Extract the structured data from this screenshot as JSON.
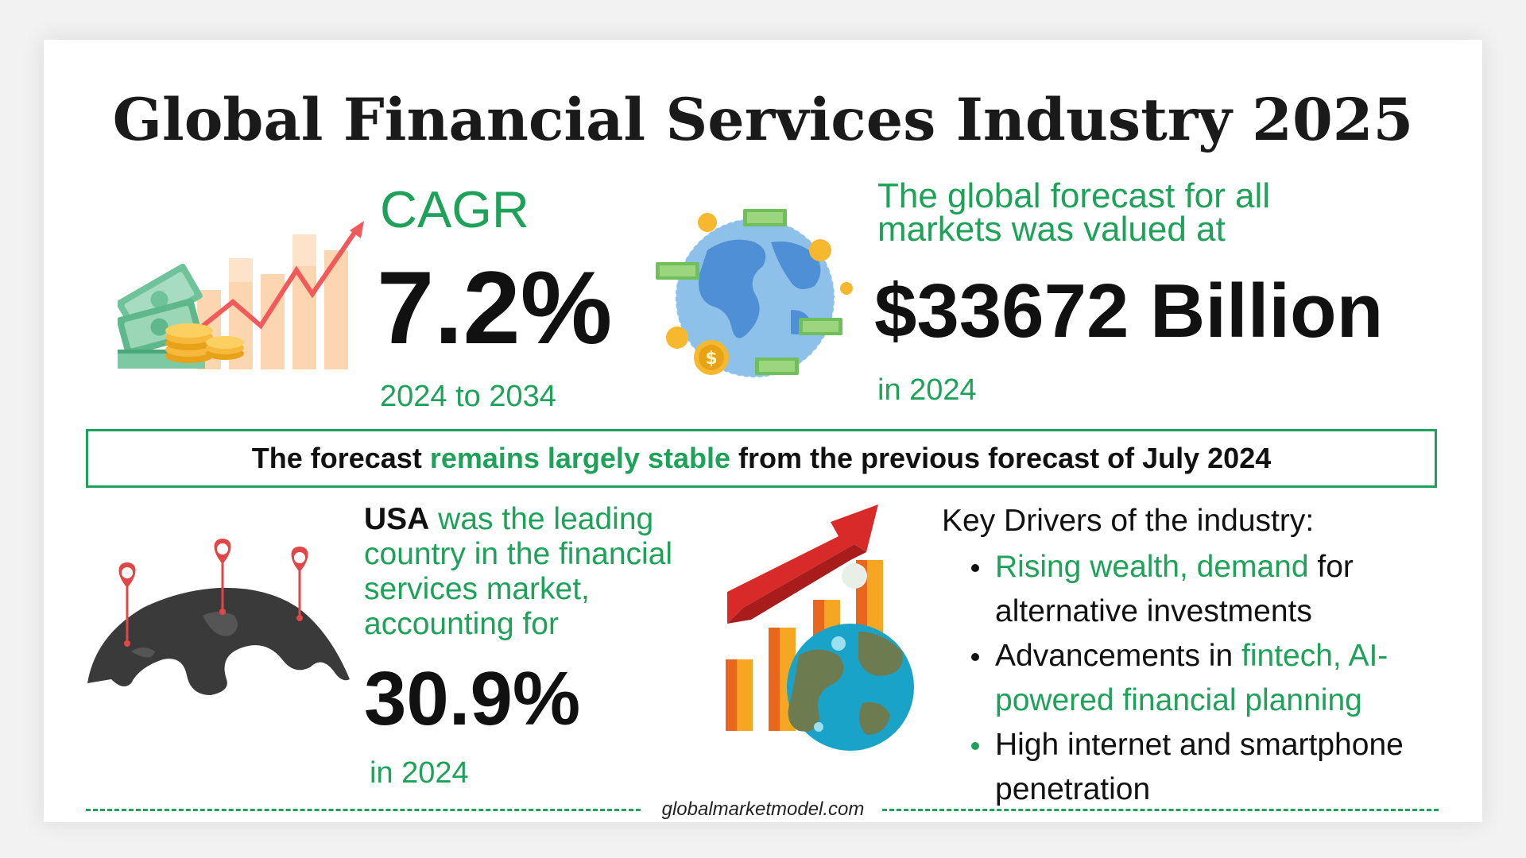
{
  "title": "Global Financial Services Industry 2025",
  "cagr": {
    "label": "CAGR",
    "value": "7.2%",
    "period": "2024 to 2034",
    "icon": "money-growth-chart-icon"
  },
  "forecast": {
    "text_line1": "The global forecast for all",
    "text_line2": "markets was valued at",
    "value": "$33672 Billion",
    "year": "in 2024",
    "icon": "globe-money-icon"
  },
  "stability": {
    "before": "The forecast ",
    "highlight": "remains largely stable",
    "after": " from the previous forecast of July 2024"
  },
  "usa": {
    "country": "USA",
    "text": " was the leading country in the financial services market, accounting for",
    "value": "30.9%",
    "year": "in 2024",
    "icon": "world-map-pins-icon"
  },
  "drivers": {
    "heading": "Key Drivers of the industry:",
    "items": [
      {
        "highlight": "Rising wealth, demand",
        "rest": " for alternative investments"
      },
      {
        "lead": "Advancements in ",
        "highlight": "fintech, AI-powered financial planning"
      },
      {
        "highlight": "High internet and smartphone penetration"
      }
    ],
    "icon": "growth-chart-globe-icon"
  },
  "footer": {
    "site": "globalmarketmodel.com"
  },
  "colors": {
    "accent": "#1ea25a",
    "text": "#111111",
    "background": "#ffffff"
  }
}
